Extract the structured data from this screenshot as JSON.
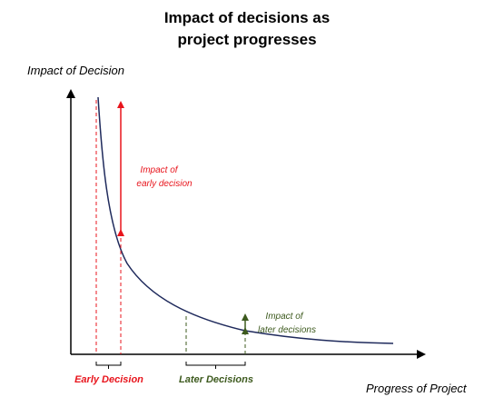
{
  "title": {
    "line1": "Impact of decisions as",
    "line2": "project progresses"
  },
  "axes": {
    "y_label": "Impact of Decision",
    "x_label": "Progress of Project"
  },
  "annotations": {
    "early_impact_line1": "Impact of",
    "early_impact_line2": "early decision",
    "later_impact_line1": "Impact of",
    "later_impact_line2": "later decisions",
    "early_decision": "Early Decision",
    "later_decisions": "Later Decisions"
  },
  "colors": {
    "curve": "#1f2a5c",
    "early": "#e8141c",
    "later": "#3d5a1e",
    "axis": "#000000"
  }
}
